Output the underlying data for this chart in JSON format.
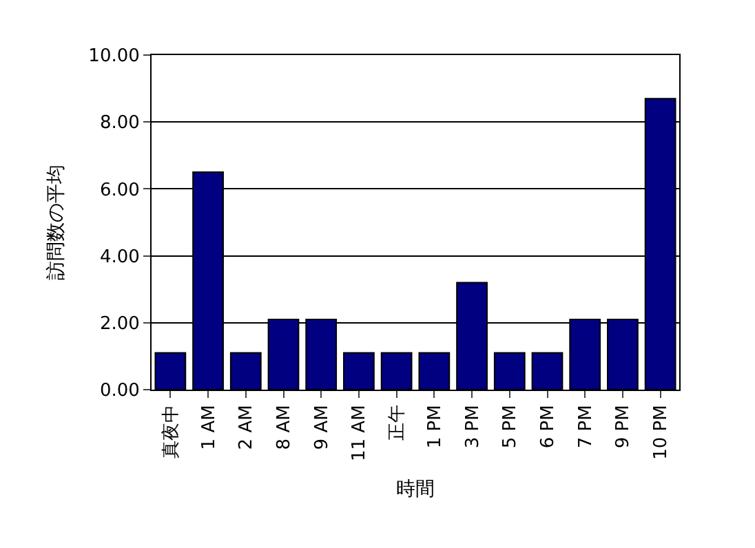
{
  "chart_data": {
    "type": "bar",
    "xlabel": "時間",
    "ylabel": "訪問数の平均",
    "categories": [
      "真夜中",
      "1 AM",
      "2 AM",
      "8 AM",
      "9 AM",
      "11 AM",
      "正午",
      "1 PM",
      "3 PM",
      "5 PM",
      "6 PM",
      "7 PM",
      "9 PM",
      "10 PM"
    ],
    "values": [
      1.1,
      6.5,
      1.1,
      2.1,
      2.1,
      1.1,
      1.1,
      1.1,
      3.2,
      1.1,
      1.1,
      2.1,
      2.1,
      8.7
    ],
    "color": "#000080",
    "ylim": [
      0,
      10
    ],
    "yticks": [
      {
        "value": 0,
        "label": "0.00"
      },
      {
        "value": 2,
        "label": "2.00"
      },
      {
        "value": 4,
        "label": "4.00"
      },
      {
        "value": 6,
        "label": "6.00"
      },
      {
        "value": 8,
        "label": "8.00"
      },
      {
        "value": 10,
        "label": "10.00"
      }
    ],
    "grid": "y",
    "legend": false
  }
}
